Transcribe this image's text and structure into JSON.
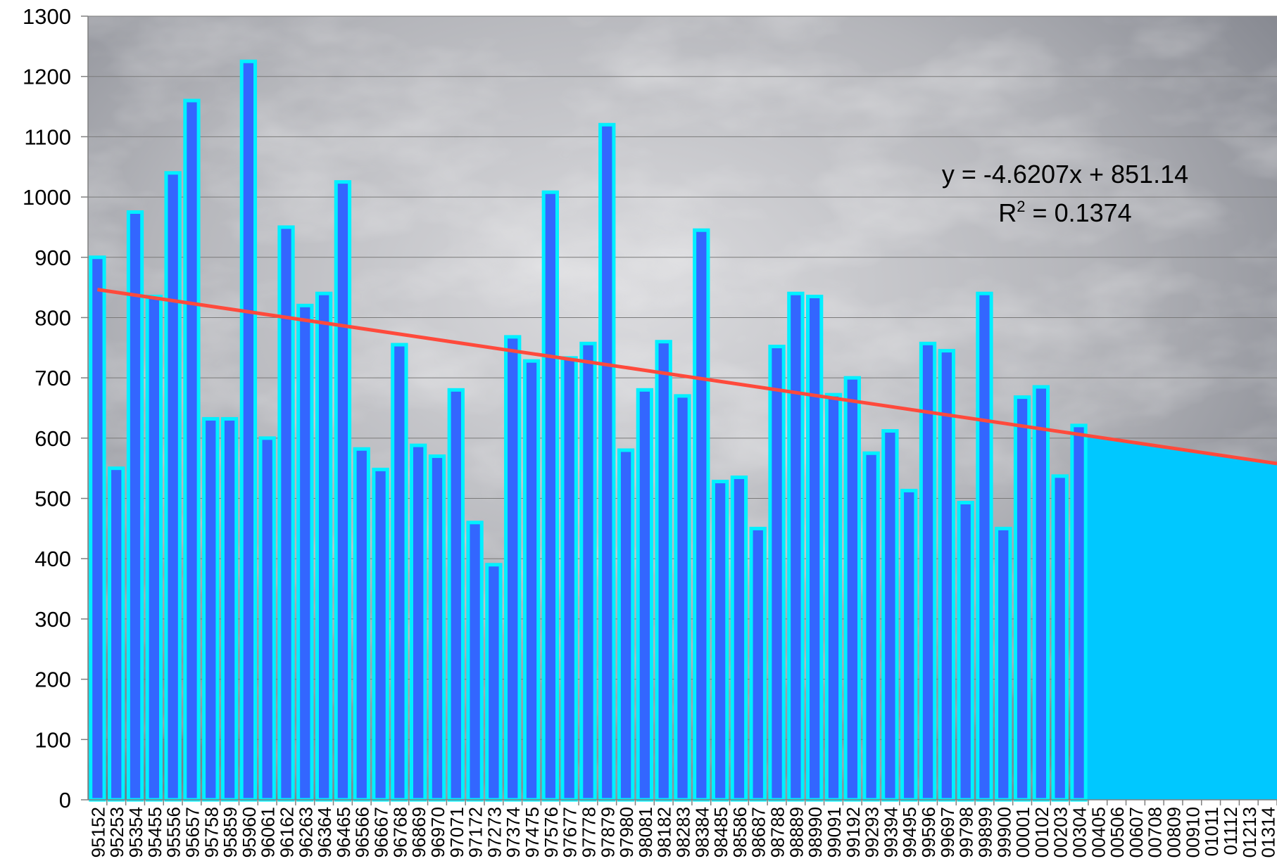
{
  "chart_data": {
    "type": "bar",
    "categories": [
      "95152",
      "95253",
      "95354",
      "95455",
      "95556",
      "95657",
      "95758",
      "95859",
      "95960",
      "96061",
      "96162",
      "96263",
      "96364",
      "96465",
      "96566",
      "96667",
      "96768",
      "96869",
      "96970",
      "97071",
      "97172",
      "97273",
      "97374",
      "97475",
      "97576",
      "97677",
      "97778",
      "97879",
      "97980",
      "98081",
      "98182",
      "98283",
      "98384",
      "98485",
      "98586",
      "98687",
      "98788",
      "98889",
      "98990",
      "99091",
      "99192",
      "99293",
      "99394",
      "99495",
      "99596",
      "99697",
      "99798",
      "99899",
      "99900",
      "00001",
      "00102",
      "00203",
      "00304",
      "00405",
      "00506",
      "00607",
      "00708",
      "00809",
      "00910",
      "01011",
      "01112",
      "01213",
      "01314"
    ],
    "values": [
      900,
      550,
      975,
      835,
      1040,
      1160,
      632,
      632,
      1225,
      600,
      950,
      820,
      840,
      1025,
      582,
      548,
      755,
      588,
      570,
      680,
      460,
      390,
      768,
      728,
      1008,
      733,
      757,
      1120,
      580,
      680,
      760,
      670,
      945,
      528,
      535,
      450,
      752,
      840,
      835,
      672,
      700,
      575,
      612,
      513,
      757,
      745,
      493,
      840,
      450,
      668,
      685,
      537,
      621,
      null,
      null,
      null,
      null,
      null,
      null,
      null,
      null,
      null,
      null
    ],
    "color": "#3366ff",
    "edge_color": "#00f0ff",
    "ylim": [
      0,
      1300
    ],
    "yticks": [
      0,
      100,
      200,
      300,
      400,
      500,
      600,
      700,
      800,
      900,
      1000,
      1100,
      1200,
      1300
    ],
    "grid": true,
    "trendline": {
      "slope": -4.6207,
      "intercept": 851.14,
      "color": "#ff4a3c",
      "area_color": "#00c8ff",
      "equation": "y = -4.6207x + 851.14",
      "r_squared": [
        "R",
        "2",
        " = 0.1374"
      ]
    }
  }
}
